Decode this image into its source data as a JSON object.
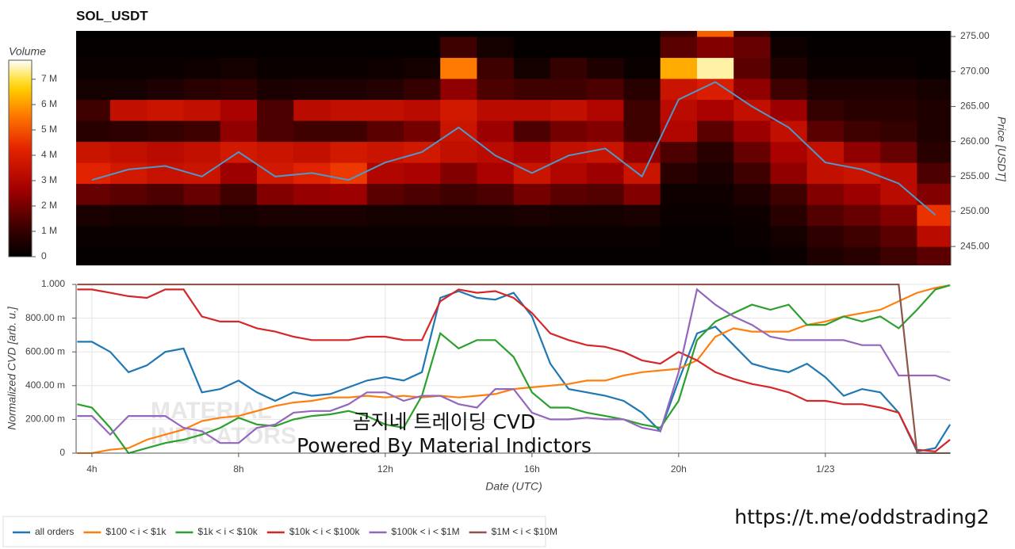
{
  "chart_data": [
    {
      "type": "heatmap",
      "title": "SOL_USDT",
      "ylabel": "Price [USDT]",
      "y_axis_position": "right",
      "colormap": "hot",
      "xlim": [
        3.57,
        27.42
      ],
      "ylim": [
        242.3,
        275.8
      ],
      "yticks": [
        {
          "value": 245,
          "label": "245.00"
        },
        {
          "value": 250,
          "label": "250.00"
        },
        {
          "value": 255,
          "label": "255.00"
        },
        {
          "value": 260,
          "label": "260.00"
        },
        {
          "value": 265,
          "label": "265.00"
        },
        {
          "value": 270,
          "label": "270.00"
        },
        {
          "value": 275,
          "label": "275.00"
        }
      ],
      "x": [
        4,
        5,
        6,
        7,
        8,
        9,
        10,
        11,
        12,
        13,
        14,
        15,
        16,
        17,
        18,
        19,
        20,
        21,
        22,
        23,
        24,
        25,
        26,
        27
      ],
      "y_bins": [
        242,
        245,
        248,
        251,
        254,
        257,
        260,
        263,
        266,
        269,
        272,
        275,
        278
      ],
      "z": [
        [
          100000.0,
          100000.0,
          100000.0,
          100000.0,
          100000.0,
          100000.0,
          100000.0,
          100000.0,
          100000.0,
          100000.0,
          100000.0,
          100000.0,
          100000.0,
          100000.0,
          100000.0,
          100000.0,
          100000.0,
          100000.0,
          100000.0,
          200000.0,
          600000.0,
          800000.0,
          1200000.0,
          1600000.0
        ],
        [
          200000.0,
          200000.0,
          200000.0,
          200000.0,
          200000.0,
          200000.0,
          200000.0,
          200000.0,
          200000.0,
          200000.0,
          200000.0,
          200000.0,
          200000.0,
          200000.0,
          200000.0,
          200000.0,
          100000.0,
          100000.0,
          200000.0,
          400000.0,
          900000.0,
          1200000.0,
          1600000.0,
          3200000.0
        ],
        [
          500000.0,
          400000.0,
          400000.0,
          500000.0,
          400000.0,
          500000.0,
          500000.0,
          500000.0,
          400000.0,
          400000.0,
          400000.0,
          400000.0,
          500000.0,
          400000.0,
          400000.0,
          500000.0,
          200000.0,
          200000.0,
          300000.0,
          800000.0,
          1500000.0,
          1800000.0,
          2200000.0,
          4500000.0
        ],
        [
          1800000.0,
          1600000.0,
          1400000.0,
          1800000.0,
          1200000.0,
          2200000.0,
          2500000.0,
          2600000.0,
          1600000.0,
          1400000.0,
          1200000.0,
          1400000.0,
          2000000.0,
          1600000.0,
          1500000.0,
          2200000.0,
          300000.0,
          300000.0,
          600000.0,
          1200000.0,
          2200000.0,
          2600000.0,
          3200000.0,
          2200000.0
        ],
        [
          4200000.0,
          3800000.0,
          3500000.0,
          3600000.0,
          2600000.0,
          3800000.0,
          4200000.0,
          4600000.0,
          3000000.0,
          2800000.0,
          2200000.0,
          2800000.0,
          3600000.0,
          3000000.0,
          2600000.0,
          3600000.0,
          800000.0,
          500000.0,
          1200000.0,
          2400000.0,
          3400000.0,
          3600000.0,
          3200000.0,
          1400000.0
        ],
        [
          3600000.0,
          3400000.0,
          3200000.0,
          3400000.0,
          3800000.0,
          3600000.0,
          3400000.0,
          3800000.0,
          3600000.0,
          3800000.0,
          3400000.0,
          3200000.0,
          2800000.0,
          3400000.0,
          3600000.0,
          2400000.0,
          1400000.0,
          800000.0,
          1800000.0,
          2800000.0,
          3400000.0,
          2400000.0,
          1800000.0,
          800000.0
        ],
        [
          800000.0,
          900000.0,
          1000000.0,
          1200000.0,
          2400000.0,
          1400000.0,
          1200000.0,
          1200000.0,
          1600000.0,
          2000000.0,
          3600000.0,
          2600000.0,
          1400000.0,
          2000000.0,
          2200000.0,
          1200000.0,
          3000000.0,
          1600000.0,
          2600000.0,
          3400000.0,
          1600000.0,
          1200000.0,
          1000000.0,
          600000.0
        ],
        [
          1200000.0,
          3400000.0,
          3600000.0,
          3400000.0,
          2800000.0,
          1400000.0,
          3200000.0,
          3400000.0,
          3400000.0,
          3200000.0,
          3800000.0,
          3200000.0,
          3200000.0,
          3400000.0,
          3000000.0,
          1200000.0,
          3200000.0,
          2800000.0,
          3400000.0,
          2600000.0,
          1000000.0,
          800000.0,
          800000.0,
          600000.0
        ],
        [
          400000.0,
          400000.0,
          600000.0,
          800000.0,
          900000.0,
          500000.0,
          600000.0,
          600000.0,
          700000.0,
          1000000.0,
          2400000.0,
          1400000.0,
          1200000.0,
          1200000.0,
          1400000.0,
          800000.0,
          3600000.0,
          4000000.0,
          2400000.0,
          1200000.0,
          600000.0,
          600000.0,
          600000.0,
          400000.0
        ],
        [
          200000.0,
          200000.0,
          200000.0,
          300000.0,
          400000.0,
          200000.0,
          200000.0,
          200000.0,
          300000.0,
          400000.0,
          5600000.0,
          1200000.0,
          400000.0,
          1000000.0,
          600000.0,
          200000.0,
          6200000.0,
          7400000.0,
          1600000.0,
          600000.0,
          200000.0,
          200000.0,
          200000.0,
          100000.0
        ],
        [
          100000.0,
          100000.0,
          100000.0,
          100000.0,
          100000.0,
          100000.0,
          100000.0,
          100000.0,
          100000.0,
          100000.0,
          1200000.0,
          400000.0,
          100000.0,
          100000.0,
          100000.0,
          100000.0,
          1600000.0,
          2200000.0,
          1800000.0,
          300000.0,
          100000.0,
          100000.0,
          100000.0,
          100000.0
        ],
        [
          0,
          0,
          0,
          0,
          0,
          0,
          0,
          0,
          0,
          0,
          0,
          0,
          0,
          0,
          0,
          0,
          1000000.0,
          5200000.0,
          1000000.0,
          0,
          0,
          0,
          0,
          0
        ]
      ],
      "colorbar": {
        "title": "Volume",
        "clim": [
          0,
          7750000.0
        ],
        "ticks": [
          0,
          {
            "value": 1000000.0,
            "label": "1 M"
          },
          {
            "value": 2000000.0,
            "label": "2 M"
          },
          {
            "value": 3000000.0,
            "label": "3 M"
          },
          {
            "value": 4000000.0,
            "label": "4 M"
          },
          {
            "value": 5000000.0,
            "label": "5 M"
          },
          {
            "value": 6000000.0,
            "label": "6 M"
          },
          {
            "value": 7000000.0,
            "label": "7 M"
          }
        ]
      },
      "series": [
        {
          "color": "#4f98c8",
          "values": [
            254.5,
            256,
            256.5,
            255,
            258.5,
            255,
            255.5,
            254.5,
            257,
            258.5,
            262,
            258,
            255.5,
            258,
            259,
            255,
            266,
            268.5,
            265,
            262,
            257,
            256,
            254,
            249.5
          ]
        }
      ]
    },
    {
      "type": "line",
      "ylabel": "Normalized CVD [arb. u.]",
      "xlabel": "Date (UTC)",
      "grid": true,
      "xlim": [
        3.57,
        27.42
      ],
      "ylim": [
        0,
        1
      ],
      "xticks": [
        {
          "value": 4,
          "label": "4h"
        },
        {
          "value": 8,
          "label": "8h"
        },
        {
          "value": 12,
          "label": "12h"
        },
        {
          "value": 16,
          "label": "16h"
        },
        {
          "value": 20,
          "label": "20h"
        },
        {
          "value": 24,
          "label": "1/23"
        }
      ],
      "yticks": [
        0,
        {
          "value": 0.2,
          "label": "200.00 m"
        },
        {
          "value": 0.4,
          "label": "400.00 m"
        },
        {
          "value": 0.6,
          "label": "600.00 m"
        },
        {
          "value": 0.8,
          "label": "800.00 m"
        },
        {
          "value": 1,
          "label": "1.000"
        }
      ],
      "x": [
        3.6,
        4,
        4.5,
        5,
        5.5,
        6,
        6.5,
        7,
        7.5,
        8,
        8.5,
        9,
        9.5,
        10,
        10.5,
        11,
        11.5,
        12,
        12.5,
        13,
        13.5,
        14,
        14.5,
        15,
        15.5,
        16,
        16.5,
        17,
        17.5,
        18,
        18.5,
        19,
        19.5,
        20,
        20.5,
        21,
        21.5,
        22,
        22.5,
        23,
        23.5,
        24,
        24.5,
        25,
        25.5,
        26,
        26.5,
        27,
        27.4
      ],
      "series": [
        {
          "name": "all orders",
          "color": "#1f77b4",
          "values": [
            0.66,
            0.66,
            0.6,
            0.48,
            0.52,
            0.6,
            0.62,
            0.36,
            0.38,
            0.43,
            0.36,
            0.31,
            0.36,
            0.34,
            0.35,
            0.39,
            0.43,
            0.45,
            0.43,
            0.48,
            0.92,
            0.96,
            0.92,
            0.91,
            0.95,
            0.81,
            0.53,
            0.38,
            0.36,
            0.34,
            0.31,
            0.24,
            0.13,
            0.43,
            0.71,
            0.75,
            0.64,
            0.53,
            0.5,
            0.48,
            0.53,
            0.45,
            0.34,
            0.38,
            0.36,
            0.24,
            0.01,
            0.03,
            0.17
          ]
        },
        {
          "name": "$100 < i < $1k",
          "color": "#ff7f0e",
          "values": [
            0,
            0,
            0.02,
            0.03,
            0.08,
            0.11,
            0.14,
            0.19,
            0.21,
            0.22,
            0.25,
            0.28,
            0.3,
            0.31,
            0.33,
            0.33,
            0.34,
            0.33,
            0.34,
            0.33,
            0.34,
            0.33,
            0.34,
            0.35,
            0.38,
            0.39,
            0.4,
            0.41,
            0.43,
            0.43,
            0.46,
            0.48,
            0.49,
            0.5,
            0.55,
            0.69,
            0.74,
            0.72,
            0.72,
            0.72,
            0.76,
            0.78,
            0.81,
            0.83,
            0.85,
            0.9,
            0.95,
            0.98,
            0.995
          ]
        },
        {
          "name": "$1k < i < $10k",
          "color": "#2ca02c",
          "values": [
            0.29,
            0.27,
            0.15,
            0,
            0.03,
            0.06,
            0.08,
            0.11,
            0.15,
            0.21,
            0.17,
            0.16,
            0.2,
            0.22,
            0.23,
            0.25,
            0.22,
            0.17,
            0.15,
            0.34,
            0.71,
            0.62,
            0.67,
            0.67,
            0.57,
            0.36,
            0.27,
            0.27,
            0.24,
            0.22,
            0.2,
            0.17,
            0.15,
            0.31,
            0.67,
            0.78,
            0.83,
            0.88,
            0.85,
            0.88,
            0.76,
            0.76,
            0.81,
            0.78,
            0.81,
            0.74,
            0.85,
            0.97,
            0.995
          ]
        },
        {
          "name": "$10k < i < $100k",
          "color": "#d62728",
          "values": [
            0.97,
            0.97,
            0.95,
            0.93,
            0.92,
            0.97,
            0.97,
            0.81,
            0.78,
            0.78,
            0.74,
            0.72,
            0.69,
            0.67,
            0.67,
            0.67,
            0.69,
            0.69,
            0.67,
            0.67,
            0.9,
            0.97,
            0.95,
            0.96,
            0.92,
            0.83,
            0.71,
            0.67,
            0.64,
            0.63,
            0.6,
            0.55,
            0.53,
            0.6,
            0.55,
            0.48,
            0.44,
            0.41,
            0.39,
            0.36,
            0.31,
            0.31,
            0.29,
            0.29,
            0.27,
            0.24,
            0.02,
            0.01,
            0.08
          ]
        },
        {
          "name": "$100k < i < $1M",
          "color": "#9467bd",
          "values": [
            0.22,
            0.22,
            0.11,
            0.22,
            0.22,
            0.22,
            0.15,
            0.13,
            0.06,
            0.06,
            0.15,
            0.17,
            0.24,
            0.25,
            0.25,
            0.29,
            0.36,
            0.36,
            0.31,
            0.34,
            0.34,
            0.29,
            0.27,
            0.38,
            0.38,
            0.24,
            0.2,
            0.2,
            0.21,
            0.2,
            0.2,
            0.15,
            0.13,
            0.48,
            0.97,
            0.88,
            0.81,
            0.76,
            0.69,
            0.67,
            0.67,
            0.67,
            0.67,
            0.64,
            0.64,
            0.46,
            0.46,
            0.46,
            0.43
          ]
        },
        {
          "name": "$1M < i < $10M",
          "color": "#8c564b",
          "values": [
            1,
            1,
            1,
            1,
            1,
            1,
            1,
            1,
            1,
            1,
            1,
            1,
            1,
            1,
            1,
            1,
            1,
            1,
            1,
            1,
            1,
            1,
            1,
            1,
            1,
            1,
            1,
            1,
            1,
            1,
            1,
            1,
            1,
            1,
            1,
            1,
            1,
            1,
            1,
            1,
            1,
            1,
            1,
            1,
            1,
            1,
            0,
            0,
            0
          ]
        }
      ],
      "annotations": [
        "곰지네 트레이딩 CVD",
        "Powered By Material Indictors"
      ],
      "watermark": [
        "MATERIAL",
        "INDICATORS"
      ]
    }
  ],
  "footer": {
    "link": "https://t.me/oddstrading2"
  }
}
